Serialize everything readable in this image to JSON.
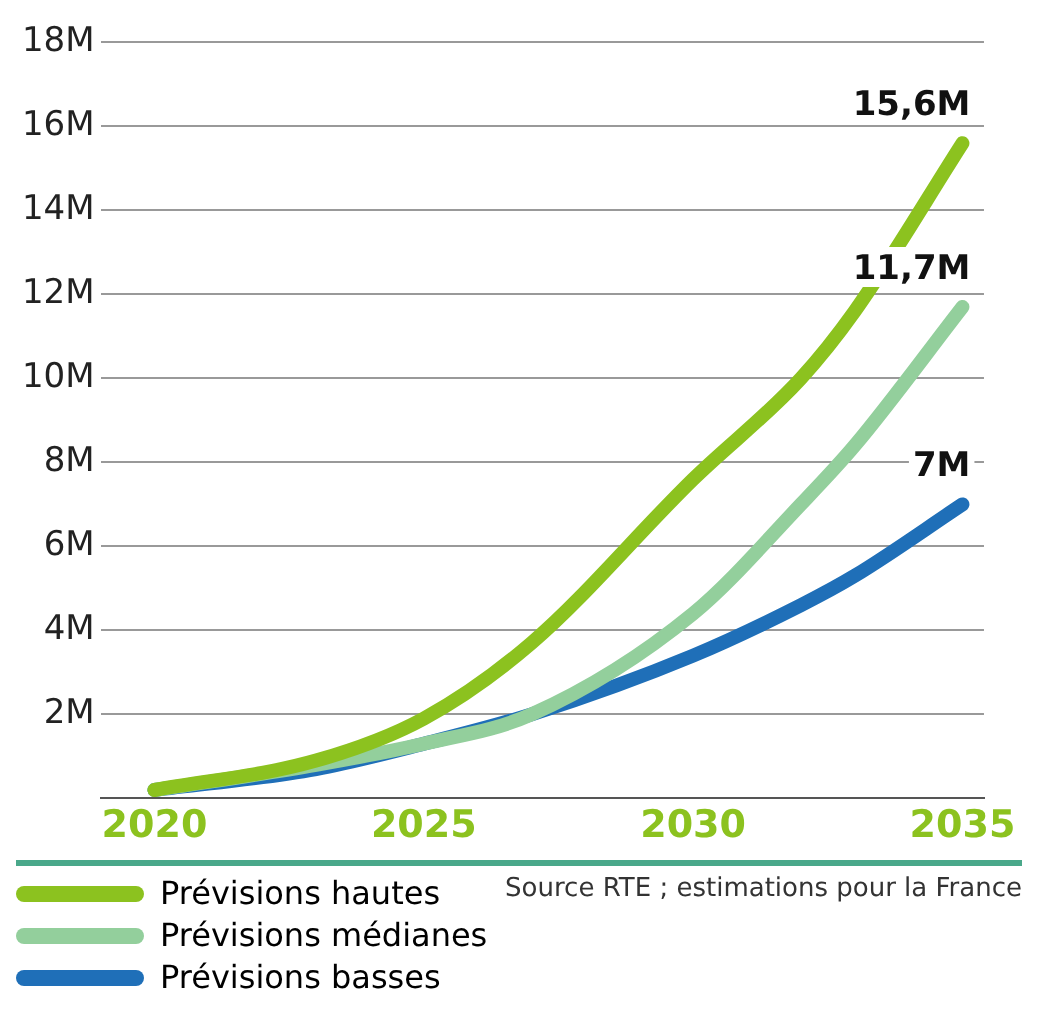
{
  "chart_data": {
    "type": "line",
    "x": [
      2020,
      2023,
      2025,
      2027,
      2030,
      2032,
      2033,
      2035
    ],
    "series": [
      {
        "name": "Prévisions hautes",
        "color": "#8cc21f",
        "values": [
          0.2,
          0.9,
          1.9,
          3.7,
          7.6,
          10.0,
          11.6,
          15.6
        ],
        "value_labels": [
          null,
          null,
          null,
          null,
          null,
          null,
          null,
          "15,6M"
        ]
      },
      {
        "name": "Prévisions médianes",
        "color": "#93cf9c",
        "values": [
          0.2,
          0.8,
          1.3,
          2.0,
          4.4,
          7.0,
          8.4,
          11.7
        ],
        "value_labels": [
          null,
          null,
          null,
          null,
          null,
          null,
          null,
          "11,7M"
        ]
      },
      {
        "name": "Prévisions basses",
        "color": "#1f6fb8",
        "values": [
          0.2,
          0.7,
          1.3,
          2.0,
          3.4,
          4.6,
          5.3,
          7.0
        ],
        "value_labels": [
          null,
          null,
          null,
          null,
          null,
          null,
          null,
          "7M"
        ]
      }
    ],
    "xlim": [
      2019,
      2035.4
    ],
    "xticks": [
      2020,
      2025,
      2030,
      2035
    ],
    "ylim": [
      0,
      18
    ],
    "yticks": [
      {
        "value": 0,
        "label": null
      },
      {
        "value": 2,
        "label": "2M"
      },
      {
        "value": 4,
        "label": "4M"
      },
      {
        "value": 6,
        "label": "6M"
      },
      {
        "value": 8,
        "label": "8M"
      },
      {
        "value": 10,
        "label": "10M"
      },
      {
        "value": 12,
        "label": "12M"
      },
      {
        "value": 14,
        "label": "14M"
      },
      {
        "value": 16,
        "label": "16M"
      },
      {
        "value": 18,
        "label": "18M"
      }
    ],
    "grid": "y",
    "legend": "bottom",
    "marker": "none",
    "line_style": "solid",
    "annotations": [
      "Source RTE ; estimations pour la France"
    ]
  }
}
